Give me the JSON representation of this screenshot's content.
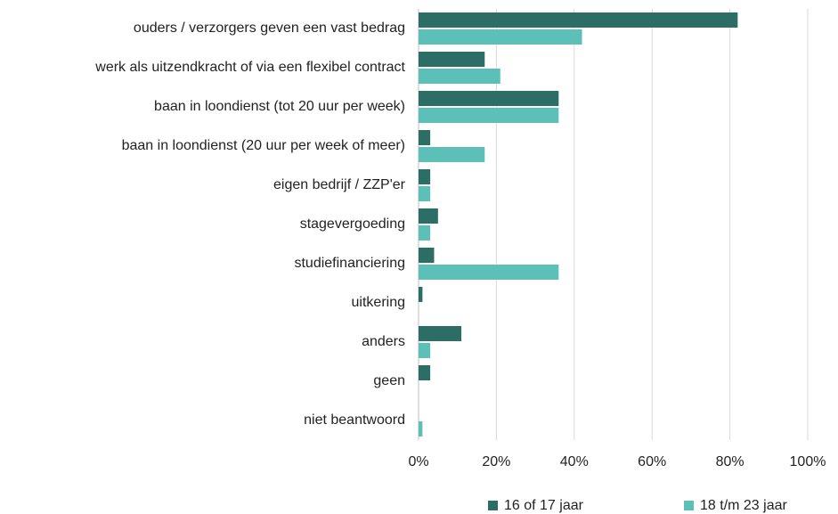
{
  "chart_data": {
    "type": "barh",
    "categories": [
      "ouders / verzorgers geven een vast bedrag",
      "werk als uitzendkracht of via een flexibel contract",
      "baan in loondienst (tot 20 uur per week)",
      "baan in loondienst (20 uur per week of meer)",
      "eigen bedrijf / ZZP'er",
      "stagevergoeding",
      "studiefinanciering",
      "uitkering",
      "anders",
      "geen",
      "niet beantwoord"
    ],
    "series": [
      {
        "name": "16 of 17 jaar",
        "color": "#2c6e66",
        "values": [
          82,
          17,
          36,
          3,
          3,
          5,
          4,
          1,
          11,
          3,
          0
        ]
      },
      {
        "name": "18 t/m 23 jaar",
        "color": "#5cbfb8",
        "values": [
          42,
          21,
          36,
          17,
          3,
          3,
          36,
          0,
          3,
          0,
          1
        ]
      }
    ],
    "xlim": [
      0,
      100
    ],
    "xticks": [
      {
        "value": 0,
        "label": "0%"
      },
      {
        "value": 20,
        "label": "20%"
      },
      {
        "value": 40,
        "label": "40%"
      },
      {
        "value": 60,
        "label": "60%"
      },
      {
        "value": 80,
        "label": "80%"
      },
      {
        "value": 100,
        "label": "100%"
      }
    ],
    "grid": true,
    "legend": "bottom"
  }
}
